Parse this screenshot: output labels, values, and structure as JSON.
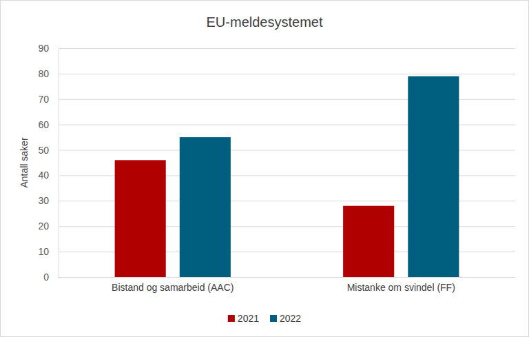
{
  "chart_data": {
    "type": "bar",
    "title": "EU-meldesystemet",
    "y_label": "Antall saker",
    "categories": [
      "Bistand og samarbeid (AAC)",
      "Mistanke om svindel (FF)"
    ],
    "series": [
      {
        "name": "2021",
        "color": "#b00000",
        "values": [
          46,
          28
        ]
      },
      {
        "name": "2022",
        "color": "#005f7f",
        "values": [
          55,
          79
        ]
      }
    ],
    "ylim": [
      0,
      90
    ],
    "yticks": [
      0,
      10,
      20,
      30,
      40,
      50,
      60,
      70,
      80,
      90
    ],
    "grid": true,
    "legend": "bottom"
  }
}
